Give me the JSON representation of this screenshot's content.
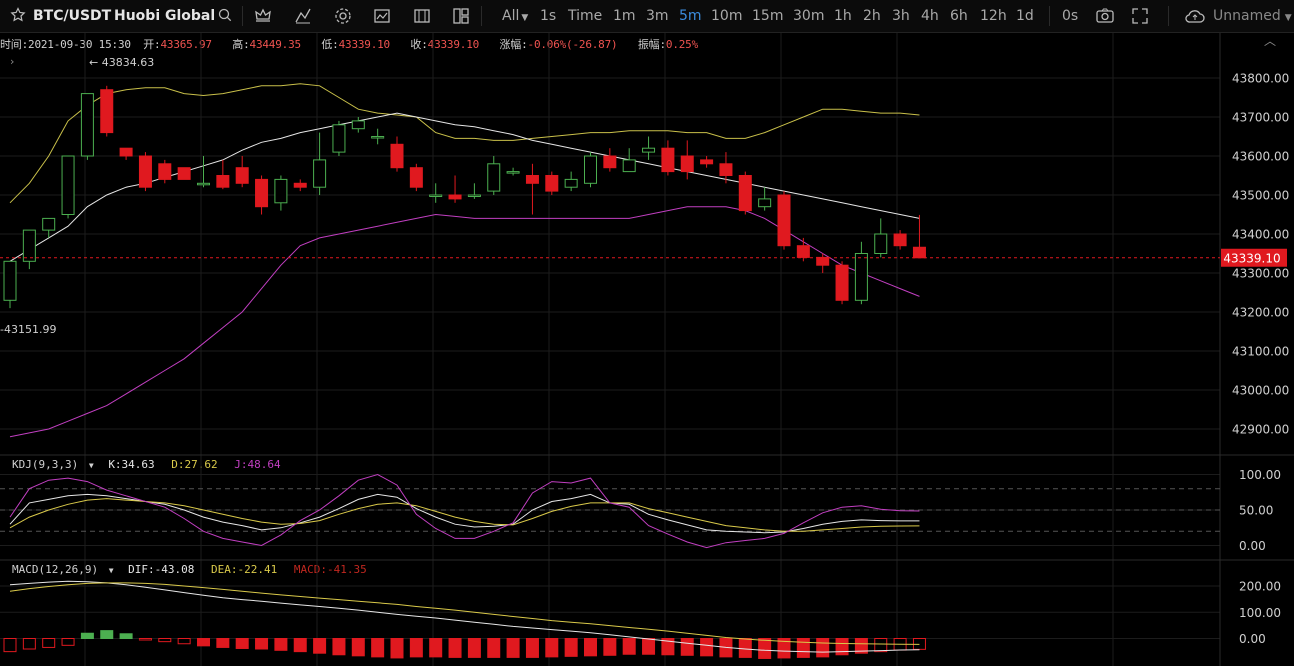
{
  "toolbar": {
    "symbol": "BTC/USDT",
    "exchange": "Huobi Global",
    "all_label": "All",
    "intervals": [
      "1s",
      "Time",
      "1m",
      "3m",
      "5m",
      "10m",
      "15m",
      "30m",
      "1h",
      "2h",
      "3h",
      "4h",
      "6h",
      "12h",
      "1d"
    ],
    "active_interval": "5m",
    "zero_label": "0s",
    "layout_name": "Unnamed"
  },
  "info": {
    "time_label": "时间:",
    "time": "2021-09-30 15:30",
    "open_label": "开:",
    "open": "43365.97",
    "high_label": "高:",
    "high": "43449.35",
    "low_label": "低:",
    "low": "43339.10",
    "close_label": "收:",
    "close": "43339.10",
    "change_label": "涨幅:",
    "change": "-0.06%(-26.87)",
    "amplitude_label": "振幅:",
    "amplitude": "0.25%"
  },
  "main_chart": {
    "high_marker": "43834.63",
    "low_marker": "43151.99",
    "current_price": "43339.10",
    "y_ticks": [
      "43800.00",
      "43700.00",
      "43600.00",
      "43500.00",
      "43400.00",
      "43300.00",
      "43200.00",
      "43100.00",
      "43000.00",
      "42900.00"
    ]
  },
  "kdj": {
    "title": "KDJ(9,3,3)",
    "k": "K:34.63",
    "d": "D:27.62",
    "j": "J:48.64",
    "y_ticks": [
      "100.00",
      "50.00",
      "0.00"
    ]
  },
  "macd": {
    "title": "MACD(12,26,9)",
    "dif": "DIF:-43.08",
    "dea": "DEA:-22.41",
    "macd": "MACD:-41.35",
    "y_ticks": [
      "200.00",
      "100.00",
      "0.00"
    ]
  },
  "colors": {
    "up": "#4caf50",
    "down": "#e0191f",
    "boll_upper": "#c9c04a",
    "boll_mid": "#e6e6e6",
    "boll_lower": "#c13fc1",
    "accent": "#3c8dde"
  },
  "chart_data": {
    "type": "candlestick",
    "interval": "5m",
    "candles": [
      [
        43230,
        43330,
        43210,
        43330
      ],
      [
        43330,
        43410,
        43310,
        43410
      ],
      [
        43410,
        43440,
        43390,
        43440
      ],
      [
        43450,
        43600,
        43440,
        43600
      ],
      [
        43600,
        43760,
        43590,
        43760
      ],
      [
        43770,
        43660,
        43650,
        43780
      ],
      [
        43620,
        43600,
        43590,
        43620
      ],
      [
        43600,
        43520,
        43510,
        43610
      ],
      [
        43580,
        43540,
        43530,
        43590
      ],
      [
        43570,
        43540,
        43540,
        43570
      ],
      [
        43530,
        43530,
        43520,
        43600
      ],
      [
        43550,
        43520,
        43515,
        43590
      ],
      [
        43570,
        43530,
        43520,
        43600
      ],
      [
        43540,
        43470,
        43450,
        43550
      ],
      [
        43480,
        43540,
        43460,
        43550
      ],
      [
        43530,
        43520,
        43510,
        43540
      ],
      [
        43520,
        43590,
        43500,
        43660
      ],
      [
        43610,
        43680,
        43600,
        43690
      ],
      [
        43670,
        43690,
        43660,
        43700
      ],
      [
        43650,
        43650,
        43630,
        43670
      ],
      [
        43630,
        43570,
        43560,
        43650
      ],
      [
        43570,
        43520,
        43510,
        43580
      ],
      [
        43500,
        43500,
        43480,
        43530
      ],
      [
        43500,
        43490,
        43480,
        43550
      ],
      [
        43500,
        43500,
        43490,
        43530
      ],
      [
        43510,
        43580,
        43500,
        43600
      ],
      [
        43560,
        43560,
        43550,
        43570
      ],
      [
        43550,
        43530,
        43450,
        43580
      ],
      [
        43550,
        43510,
        43500,
        43560
      ],
      [
        43520,
        43540,
        43510,
        43560
      ],
      [
        43530,
        43600,
        43520,
        43610
      ],
      [
        43600,
        43570,
        43560,
        43620
      ],
      [
        43560,
        43590,
        43560,
        43620
      ],
      [
        43610,
        43620,
        43590,
        43650
      ],
      [
        43620,
        43560,
        43550,
        43640
      ],
      [
        43600,
        43560,
        43540,
        43640
      ],
      [
        43590,
        43580,
        43570,
        43600
      ],
      [
        43580,
        43550,
        43530,
        43610
      ],
      [
        43550,
        43460,
        43450,
        43560
      ],
      [
        43470,
        43490,
        43460,
        43520
      ],
      [
        43500,
        43370,
        43360,
        43510
      ],
      [
        43370,
        43340,
        43330,
        43390
      ],
      [
        43340,
        43320,
        43300,
        43350
      ],
      [
        43320,
        43230,
        43220,
        43330
      ],
      [
        43230,
        43350,
        43220,
        43380
      ],
      [
        43350,
        43400,
        43340,
        43440
      ],
      [
        43400,
        43370,
        43360,
        43410
      ],
      [
        43366,
        43339,
        43339,
        43449
      ]
    ],
    "boll_upper": [
      43480,
      43530,
      43600,
      43690,
      43730,
      43760,
      43770,
      43775,
      43775,
      43760,
      43755,
      43760,
      43770,
      43780,
      43780,
      43785,
      43780,
      43750,
      43720,
      43710,
      43705,
      43700,
      43660,
      43645,
      43645,
      43640,
      43640,
      43645,
      43650,
      43655,
      43660,
      43660,
      43665,
      43665,
      43665,
      43660,
      43660,
      43645,
      43645,
      43660,
      43680,
      43700,
      43720,
      43720,
      43715,
      43710,
      43710,
      43705
    ],
    "boll_mid": [
      43330,
      43360,
      43390,
      43420,
      43470,
      43500,
      43520,
      43530,
      43545,
      43560,
      43575,
      43590,
      43615,
      43635,
      43645,
      43660,
      43670,
      43680,
      43690,
      43700,
      43710,
      43700,
      43690,
      43680,
      43675,
      43665,
      43655,
      43640,
      43630,
      43620,
      43610,
      43600,
      43590,
      43580,
      43570,
      43560,
      43550,
      43540,
      43530,
      43520,
      43510,
      43500,
      43490,
      43480,
      43470,
      43460,
      43450,
      43440
    ],
    "boll_lower": [
      42880,
      42890,
      42900,
      42920,
      42940,
      42960,
      42990,
      43020,
      43050,
      43080,
      43120,
      43160,
      43200,
      43260,
      43320,
      43370,
      43390,
      43400,
      43410,
      43420,
      43430,
      43440,
      43450,
      43445,
      43440,
      43440,
      43440,
      43440,
      43440,
      43440,
      43440,
      43440,
      43440,
      43450,
      43460,
      43470,
      43470,
      43470,
      43460,
      43440,
      43410,
      43380,
      43350,
      43320,
      43300,
      43280,
      43260,
      43240
    ],
    "kdj_k": [
      30,
      60,
      65,
      70,
      72,
      70,
      66,
      62,
      58,
      50,
      40,
      33,
      28,
      22,
      25,
      32,
      40,
      52,
      65,
      72,
      68,
      52,
      40,
      30,
      26,
      27,
      30,
      50,
      62,
      66,
      72,
      60,
      58,
      44,
      36,
      29,
      22,
      20,
      19,
      18,
      19,
      24,
      30,
      34,
      36,
      35,
      34.6,
      34.63
    ],
    "kdj_d": [
      25,
      40,
      50,
      58,
      64,
      66,
      64,
      62,
      60,
      56,
      50,
      44,
      38,
      33,
      30,
      31,
      35,
      44,
      52,
      58,
      60,
      56,
      48,
      40,
      34,
      30,
      29,
      38,
      48,
      55,
      60,
      60,
      60,
      52,
      46,
      40,
      34,
      28,
      25,
      22,
      20,
      20,
      22,
      24,
      26,
      27,
      27.5,
      27.62
    ],
    "kdj_j": [
      40,
      80,
      92,
      95,
      90,
      78,
      70,
      62,
      54,
      38,
      20,
      10,
      5,
      0,
      15,
      35,
      50,
      70,
      92,
      100,
      85,
      44,
      24,
      10,
      10,
      20,
      32,
      74,
      90,
      88,
      95,
      60,
      54,
      28,
      16,
      5,
      -3,
      4,
      7,
      10,
      17,
      32,
      46,
      54,
      56,
      51,
      49,
      48.64
    ],
    "macd_dif": [
      205,
      210,
      215,
      218,
      216,
      212,
      205,
      195,
      185,
      175,
      165,
      155,
      148,
      142,
      135,
      128,
      122,
      115,
      108,
      100,
      92,
      85,
      78,
      70,
      62,
      54,
      46,
      40,
      34,
      28,
      22,
      14,
      6,
      -2,
      -10,
      -18,
      -26,
      -34,
      -40,
      -45,
      -48,
      -50,
      -52,
      -50,
      -48,
      -46,
      -44,
      -43.08
    ],
    "macd_dea": [
      180,
      190,
      198,
      205,
      210,
      212,
      212,
      210,
      206,
      200,
      194,
      187,
      180,
      173,
      166,
      160,
      154,
      148,
      142,
      136,
      130,
      122,
      115,
      108,
      100,
      92,
      84,
      76,
      68,
      62,
      56,
      49,
      42,
      35,
      28,
      20,
      12,
      4,
      -2,
      -7,
      -11,
      -14,
      -17,
      -19,
      -20,
      -21,
      -22,
      -22.41
    ],
    "macd_hist": [
      -50,
      -40,
      -34,
      -26,
      20,
      30,
      18,
      -4,
      -12,
      -20,
      -28,
      -34,
      -38,
      -40,
      -45,
      -50,
      -56,
      -62,
      -66,
      -70,
      -74,
      -70,
      -70,
      -72,
      -72,
      -72,
      -72,
      -72,
      -70,
      -68,
      -66,
      -64,
      -60,
      -60,
      -62,
      -64,
      -66,
      -70,
      -72,
      -76,
      -74,
      -72,
      -70,
      -62,
      -56,
      -50,
      -44,
      -41.35
    ]
  }
}
